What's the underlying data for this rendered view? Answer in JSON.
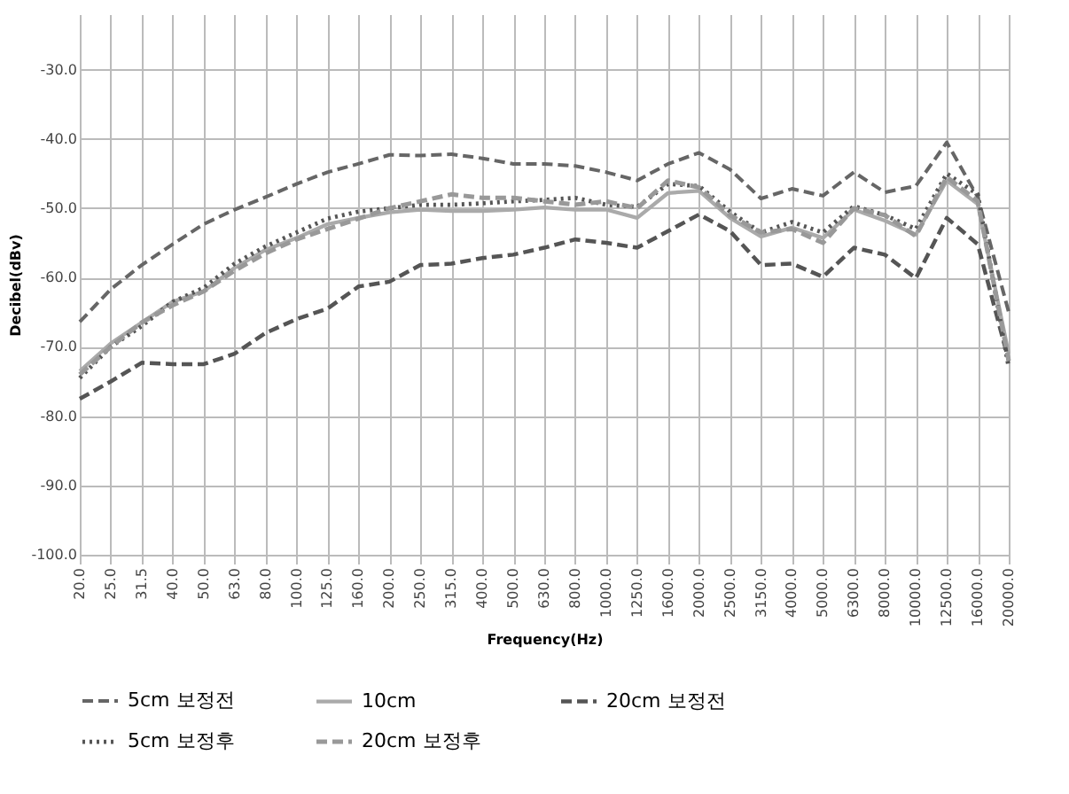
{
  "chart_data": {
    "type": "line",
    "xlabel": "Frequency(Hz)",
    "ylabel": "Decibel(dBv)",
    "categories": [
      "20.0",
      "25.0",
      "31.5",
      "40.0",
      "50.0",
      "63.0",
      "80.0",
      "100.0",
      "125.0",
      "160.0",
      "200.0",
      "250.0",
      "315.0",
      "400.0",
      "500.0",
      "630.0",
      "800.0",
      "1000.0",
      "1250.0",
      "1600.0",
      "2000.0",
      "2500.0",
      "3150.0",
      "4000.0",
      "5000.0",
      "6300.0",
      "8000.0",
      "10000.0",
      "12500.0",
      "16000.0",
      "20000.0"
    ],
    "ylim": [
      -100,
      -22
    ],
    "yticks": [
      {
        "value": -100,
        "label": "-100.0"
      },
      {
        "value": -90,
        "label": "-90.0"
      },
      {
        "value": -80,
        "label": "-80.0"
      },
      {
        "value": -70,
        "label": "-70.0"
      },
      {
        "value": -60,
        "label": "-60.0"
      },
      {
        "value": -50,
        "label": "-50.0"
      },
      {
        "value": -40,
        "label": "-40.0"
      },
      {
        "value": -30,
        "label": "-30.0"
      }
    ],
    "grid": true,
    "legend": "bottom",
    "marker": "none",
    "series": [
      {
        "name": "5cm 보정전",
        "color": "#666666",
        "line_style": "dashed",
        "values": [
          -66.4,
          -61.7,
          -58.2,
          -55.2,
          -52.3,
          -50.2,
          -48.4,
          -46.5,
          -44.8,
          -43.6,
          -42.3,
          -42.4,
          -42.2,
          -42.8,
          -43.6,
          -43.6,
          -43.9,
          -44.8,
          -46.0,
          -43.6,
          -42.0,
          -44.4,
          -48.6,
          -47.2,
          -48.2,
          -44.8,
          -47.7,
          -46.8,
          -40.5,
          -48.4,
          -65
        ]
      },
      {
        "name": "10cm",
        "color": "#aaaaaa",
        "line_style": "solid",
        "values": [
          -73.5,
          -69.5,
          -66.5,
          -63.5,
          -62.0,
          -58.6,
          -56.0,
          -54.3,
          -52.3,
          -51.4,
          -50.6,
          -50.2,
          -50.4,
          -50.4,
          -50.2,
          -49.9,
          -50.2,
          -50.2,
          -51.4,
          -47.8,
          -47.5,
          -51.4,
          -54.1,
          -52.8,
          -54.3,
          -50.2,
          -51.8,
          -53.8,
          -46.0,
          -49.4,
          -71
        ]
      },
      {
        "name": "20cm 보정전",
        "color": "#555555",
        "line_style": "dashed",
        "values": [
          -77.5,
          -75,
          -72.3,
          -72.5,
          -72.5,
          -71,
          -68,
          -66,
          -64.5,
          -61.3,
          -60.6,
          -58.2,
          -58.0,
          -57.2,
          -56.7,
          -55.7,
          -54.5,
          -55.0,
          -55.7,
          -53.3,
          -50.9,
          -53.3,
          -58.2,
          -58.0,
          -59.9,
          -55.7,
          -56.7,
          -60.1,
          -51.4,
          -55.2,
          -72
        ]
      },
      {
        "name": "5cm 보정후",
        "color": "#555555",
        "line_style": "dotted",
        "values": [
          -74.5,
          -70,
          -67,
          -63.5,
          -61.5,
          -58,
          -55.5,
          -53.5,
          -51.5,
          -50.5,
          -50.0,
          -49.5,
          -49.5,
          -49.3,
          -49.0,
          -48.8,
          -48.5,
          -49.5,
          -49.8,
          -46.5,
          -46.8,
          -50.5,
          -53.5,
          -52.0,
          -53.5,
          -49.7,
          -51.0,
          -53.0,
          -45.0,
          -48,
          -73
        ]
      },
      {
        "name": "20cm 보정후",
        "color": "#999999",
        "line_style": "dashed",
        "values": [
          -74,
          -70,
          -66.5,
          -64,
          -62,
          -59,
          -56.5,
          -54.5,
          -53,
          -51.5,
          -50,
          -49,
          -48,
          -48.5,
          -48.5,
          -49,
          -49.5,
          -49,
          -50,
          -46,
          -47,
          -51,
          -53.5,
          -53,
          -55,
          -50,
          -51,
          -54,
          -45.5,
          -49,
          -72
        ]
      }
    ]
  }
}
